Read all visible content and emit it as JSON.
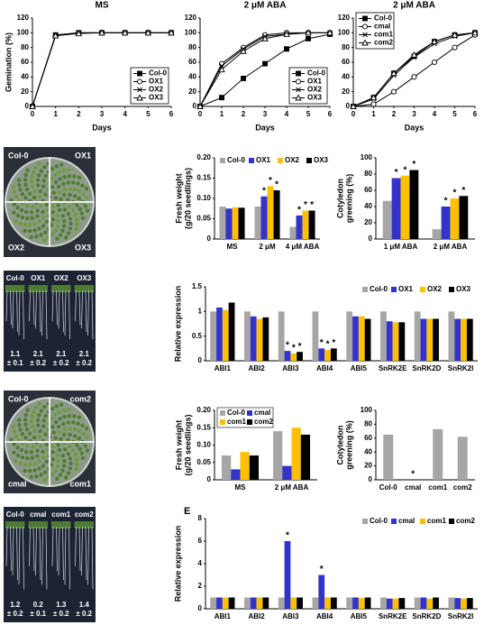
{
  "chart_data": [
    {
      "type": "line",
      "title": "MS",
      "ylabel": "Gemination (%)",
      "xlabel": "Days",
      "legend": "lower right",
      "x": [
        0,
        1,
        2,
        3,
        4,
        5,
        6
      ],
      "xlim": [
        0,
        6
      ],
      "xticks": [
        0,
        1,
        2,
        3,
        4,
        5,
        6
      ],
      "ylim": [
        0,
        120
      ],
      "yticks": [
        0,
        20,
        40,
        60,
        80,
        100,
        120
      ],
      "series": [
        {
          "name": "Col-0",
          "color": "#000000",
          "marker": "square-filled",
          "values": [
            0,
            97,
            100,
            100,
            100,
            100,
            100
          ]
        },
        {
          "name": "OX1",
          "color": "#000000",
          "marker": "circle",
          "values": [
            0,
            96,
            100,
            100,
            100,
            100,
            100
          ]
        },
        {
          "name": "OX2",
          "color": "#000000",
          "marker": "x",
          "values": [
            0,
            97,
            100,
            100,
            100,
            100,
            100
          ]
        },
        {
          "name": "OX3",
          "color": "#000000",
          "marker": "triangle",
          "values": [
            0,
            96,
            99,
            100,
            100,
            100,
            100
          ]
        }
      ]
    },
    {
      "type": "line",
      "title": "2 μM ABA",
      "xlabel": "Days",
      "legend": "lower right",
      "x": [
        0,
        1,
        2,
        3,
        4,
        5,
        6
      ],
      "xlim": [
        0,
        6
      ],
      "xticks": [
        0,
        1,
        2,
        3,
        4,
        5,
        6
      ],
      "ylim": [
        0,
        120
      ],
      "yticks": [
        0,
        20,
        40,
        60,
        80,
        100,
        120
      ],
      "series": [
        {
          "name": "Col-0",
          "color": "#000000",
          "marker": "square-filled",
          "values": [
            0,
            12,
            38,
            58,
            78,
            92,
            98
          ]
        },
        {
          "name": "OX1",
          "color": "#000000",
          "marker": "circle",
          "values": [
            0,
            58,
            80,
            97,
            100,
            100,
            100
          ]
        },
        {
          "name": "OX2",
          "color": "#000000",
          "marker": "x",
          "values": [
            0,
            55,
            78,
            95,
            98,
            100,
            100
          ]
        },
        {
          "name": "OX3",
          "color": "#000000",
          "marker": "triangle",
          "values": [
            0,
            50,
            75,
            92,
            98,
            100,
            100
          ]
        }
      ]
    },
    {
      "type": "line",
      "title": "2 μM ABA",
      "xlabel": "Days",
      "legend": "upper left",
      "x": [
        0,
        1,
        2,
        3,
        4,
        5,
        6
      ],
      "xlim": [
        0,
        6
      ],
      "xticks": [
        0,
        1,
        2,
        3,
        4,
        5,
        6
      ],
      "ylim": [
        0,
        120
      ],
      "yticks": [
        0,
        20,
        40,
        60,
        80,
        100,
        120
      ],
      "series": [
        {
          "name": "Col-0",
          "color": "#000000",
          "marker": "square-filled",
          "values": [
            0,
            12,
            45,
            68,
            88,
            97,
            100
          ]
        },
        {
          "name": "cmal",
          "color": "#000000",
          "marker": "circle",
          "values": [
            0,
            3,
            20,
            40,
            60,
            80,
            97
          ]
        },
        {
          "name": "com1",
          "color": "#000000",
          "marker": "x",
          "values": [
            0,
            10,
            42,
            67,
            85,
            95,
            100
          ]
        },
        {
          "name": "com2",
          "color": "#000000",
          "marker": "triangle",
          "values": [
            0,
            12,
            45,
            70,
            88,
            97,
            100
          ]
        }
      ]
    },
    {
      "type": "bar",
      "ylabel": [
        "Fresh weight",
        "(g/20 seedlings)"
      ],
      "categories": [
        "MS",
        "2 μM",
        "4 μM ABA"
      ],
      "ylim": [
        0,
        0.2
      ],
      "yticks": [
        0,
        0.05,
        {
          "value": 0.1,
          "label": "0.10"
        },
        0.15,
        {
          "value": 0.2,
          "label": "0.20"
        }
      ],
      "series": [
        {
          "name": "Col-0",
          "color": "#a6a6a6",
          "values": [
            0.08,
            0.08,
            0.03
          ]
        },
        {
          "name": "OX1",
          "color": "#3333cc",
          "values": [
            0.075,
            0.105,
            0.058
          ]
        },
        {
          "name": "OX2",
          "color": "#ffc000",
          "values": [
            0.078,
            0.13,
            0.07
          ]
        },
        {
          "name": "OX3",
          "color": "#000000",
          "values": [
            0.077,
            0.12,
            0.07
          ]
        }
      ],
      "annotations": [
        {
          "text": "*",
          "series": 1,
          "category": 1
        },
        {
          "text": "*",
          "series": 2,
          "category": 1
        },
        {
          "text": "*",
          "series": 3,
          "category": 1
        },
        {
          "text": "*",
          "series": 1,
          "category": 2
        },
        {
          "text": "*",
          "series": 2,
          "category": 2
        },
        {
          "text": "*",
          "series": 3,
          "category": 2
        }
      ]
    },
    {
      "type": "bar",
      "ylabel": [
        "Cotyledon",
        "greening (%)"
      ],
      "categories": [
        "1 μM ABA",
        "2 μM ABA"
      ],
      "ylim": [
        0,
        100
      ],
      "yticks": [
        0,
        20,
        40,
        60,
        80,
        100
      ],
      "series": [
        {
          "color": "#a6a6a6",
          "values": [
            47,
            12
          ]
        },
        {
          "color": "#3333cc",
          "values": [
            75,
            40
          ]
        },
        {
          "color": "#ffc000",
          "values": [
            78,
            50
          ]
        },
        {
          "color": "#000000",
          "values": [
            85,
            53
          ]
        }
      ],
      "annotations": [
        {
          "text": "*",
          "series": 1,
          "category": 0
        },
        {
          "text": "*",
          "series": 2,
          "category": 0
        },
        {
          "text": "*",
          "series": 3,
          "category": 0
        },
        {
          "text": "*",
          "series": 1,
          "category": 1
        },
        {
          "text": "*",
          "series": 2,
          "category": 1
        },
        {
          "text": "*",
          "series": 3,
          "category": 1
        }
      ]
    },
    {
      "type": "bar",
      "ylabel": [
        "Relative expression"
      ],
      "categories": [
        "ABI1",
        "ABI2",
        "ABI3",
        "ABI4",
        "ABI5",
        "SnRK2E",
        "SnRK2D",
        "SnRK2I"
      ],
      "ylim": [
        0,
        1.5
      ],
      "yticks": [
        0,
        0.5,
        1,
        1.5
      ],
      "legend": "top right",
      "series": [
        {
          "name": "Col-0",
          "color": "#a6a6a6",
          "values": [
            1,
            1,
            1,
            1,
            1,
            1,
            1,
            1
          ]
        },
        {
          "name": "OX1",
          "color": "#3333cc",
          "values": [
            1.08,
            0.9,
            0.2,
            0.25,
            0.9,
            0.8,
            0.85,
            0.85
          ]
        },
        {
          "name": "OX2",
          "color": "#ffc000",
          "values": [
            1.03,
            0.85,
            0.15,
            0.22,
            0.9,
            0.78,
            0.85,
            0.85
          ]
        },
        {
          "name": "OX3",
          "color": "#000000",
          "values": [
            1.18,
            0.88,
            0.18,
            0.25,
            0.85,
            0.78,
            0.85,
            0.85
          ]
        }
      ],
      "annotations": [
        {
          "text": "*",
          "series": 1,
          "category": 2
        },
        {
          "text": "*",
          "series": 2,
          "category": 2
        },
        {
          "text": "*",
          "series": 3,
          "category": 2
        },
        {
          "text": "*",
          "series": 1,
          "category": 3
        },
        {
          "text": "*",
          "series": 2,
          "category": 3
        },
        {
          "text": "*",
          "series": 3,
          "category": 3
        }
      ]
    },
    {
      "type": "bar",
      "ylabel": [
        "Fresh weight",
        "(g/20 seedlings)"
      ],
      "categories": [
        "MS",
        "2 μM ABA"
      ],
      "legend_columns": 2,
      "ylim": [
        0,
        0.2
      ],
      "yticks": [
        0,
        0.05,
        {
          "value": 0.1,
          "label": "0.10"
        },
        0.15,
        {
          "value": 0.2,
          "label": "0.20"
        }
      ],
      "series": [
        {
          "name": "Col-0",
          "color": "#a6a6a6",
          "values": [
            0.07,
            0.14
          ]
        },
        {
          "name": "cmal",
          "color": "#3333cc",
          "values": [
            0.03,
            0.04
          ]
        },
        {
          "name": "com1",
          "color": "#ffc000",
          "values": [
            0.08,
            0.15
          ]
        },
        {
          "name": "com2",
          "color": "#000000",
          "values": [
            0.07,
            0.13
          ]
        }
      ]
    },
    {
      "type": "bar",
      "ylabel": [
        "Cotyledon",
        "greening (%)"
      ],
      "categories": [
        "Col-0",
        "cmal",
        "com1",
        "com2"
      ],
      "ylim": [
        0,
        100
      ],
      "yticks": [
        0,
        20,
        40,
        60,
        80,
        100
      ],
      "color": "#a6a6a6",
      "values": [
        65,
        0,
        73,
        62
      ],
      "annotations": [
        {
          "text": "*",
          "category": 1
        }
      ]
    },
    {
      "type": "bar",
      "panel": "E",
      "ylabel": [
        "Relative expression"
      ],
      "categories": [
        "ABI1",
        "ABI2",
        "ABI3",
        "ABI4",
        "ABI5",
        "SnRK2E",
        "SnRK2D",
        "SnRK2I"
      ],
      "ylim": [
        0,
        8
      ],
      "yticks": [
        0,
        2,
        4,
        6,
        8
      ],
      "legend": "top right",
      "series": [
        {
          "name": "Col-0",
          "color": "#a6a6a6",
          "values": [
            1,
            1,
            1,
            1,
            1,
            1,
            1,
            1
          ]
        },
        {
          "name": "cmal",
          "color": "#3333cc",
          "values": [
            1,
            1,
            6,
            3,
            1,
            0.9,
            1,
            0.95
          ]
        },
        {
          "name": "com1",
          "color": "#ffc000",
          "values": [
            1,
            1,
            1,
            1,
            0.95,
            0.9,
            0.9,
            0.9
          ]
        },
        {
          "name": "com2",
          "color": "#000000",
          "values": [
            1,
            1,
            1,
            1,
            1,
            0.95,
            1,
            0.95
          ]
        }
      ],
      "annotations": [
        {
          "text": "*",
          "series": 1,
          "category": 2
        },
        {
          "text": "*",
          "series": 1,
          "category": 3
        }
      ]
    }
  ],
  "photos": [
    {
      "labels": [
        "Col-0",
        "OX1",
        "OX2",
        "OX3"
      ]
    },
    {
      "labels": [
        "Col-0",
        "OX1",
        "OX2",
        "OX3"
      ],
      "means": [
        "1.1",
        "2.1",
        "2.1",
        "2.1"
      ],
      "sds": [
        "± 0.1",
        "± 0.2",
        "± 0.2",
        "± 0.2"
      ]
    },
    {
      "labels": [
        "Col-0",
        "com2",
        "cmal",
        "com1"
      ]
    },
    {
      "labels": [
        "Col-0",
        "cmal",
        "com1",
        "com2"
      ],
      "means": [
        "1.2",
        "0.2",
        "1.3",
        "1.4"
      ],
      "sds": [
        "± 0.2",
        "± 0.1",
        "± 0.2",
        "± 0.2"
      ]
    }
  ]
}
